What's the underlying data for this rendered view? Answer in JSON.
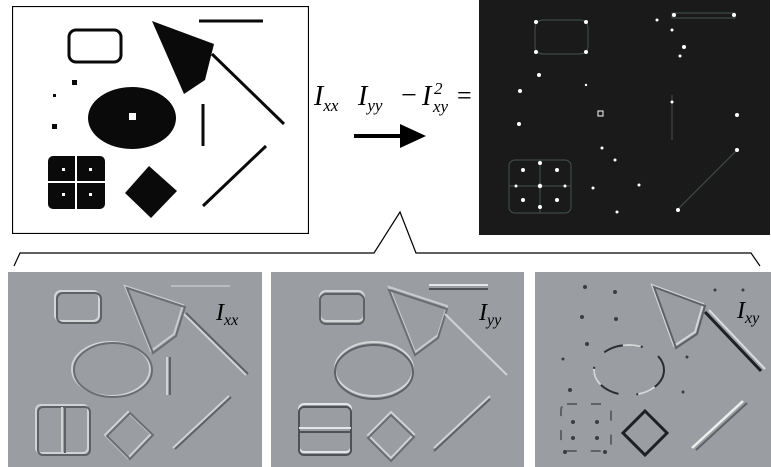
{
  "equation": {
    "i": "I",
    "xx": "xx",
    "yy": "yy",
    "xy": "xy",
    "minus": "−",
    "power": "2",
    "equals": "="
  },
  "derivatives": [
    {
      "base": "I",
      "sub": "xx"
    },
    {
      "base": "I",
      "sub": "yy"
    },
    {
      "base": "I",
      "sub": "xy"
    }
  ],
  "colors": {
    "shape_fill": "#0a0a0a",
    "response_background": "#1a1a1a",
    "derivative_background": "#9a9ea2"
  }
}
